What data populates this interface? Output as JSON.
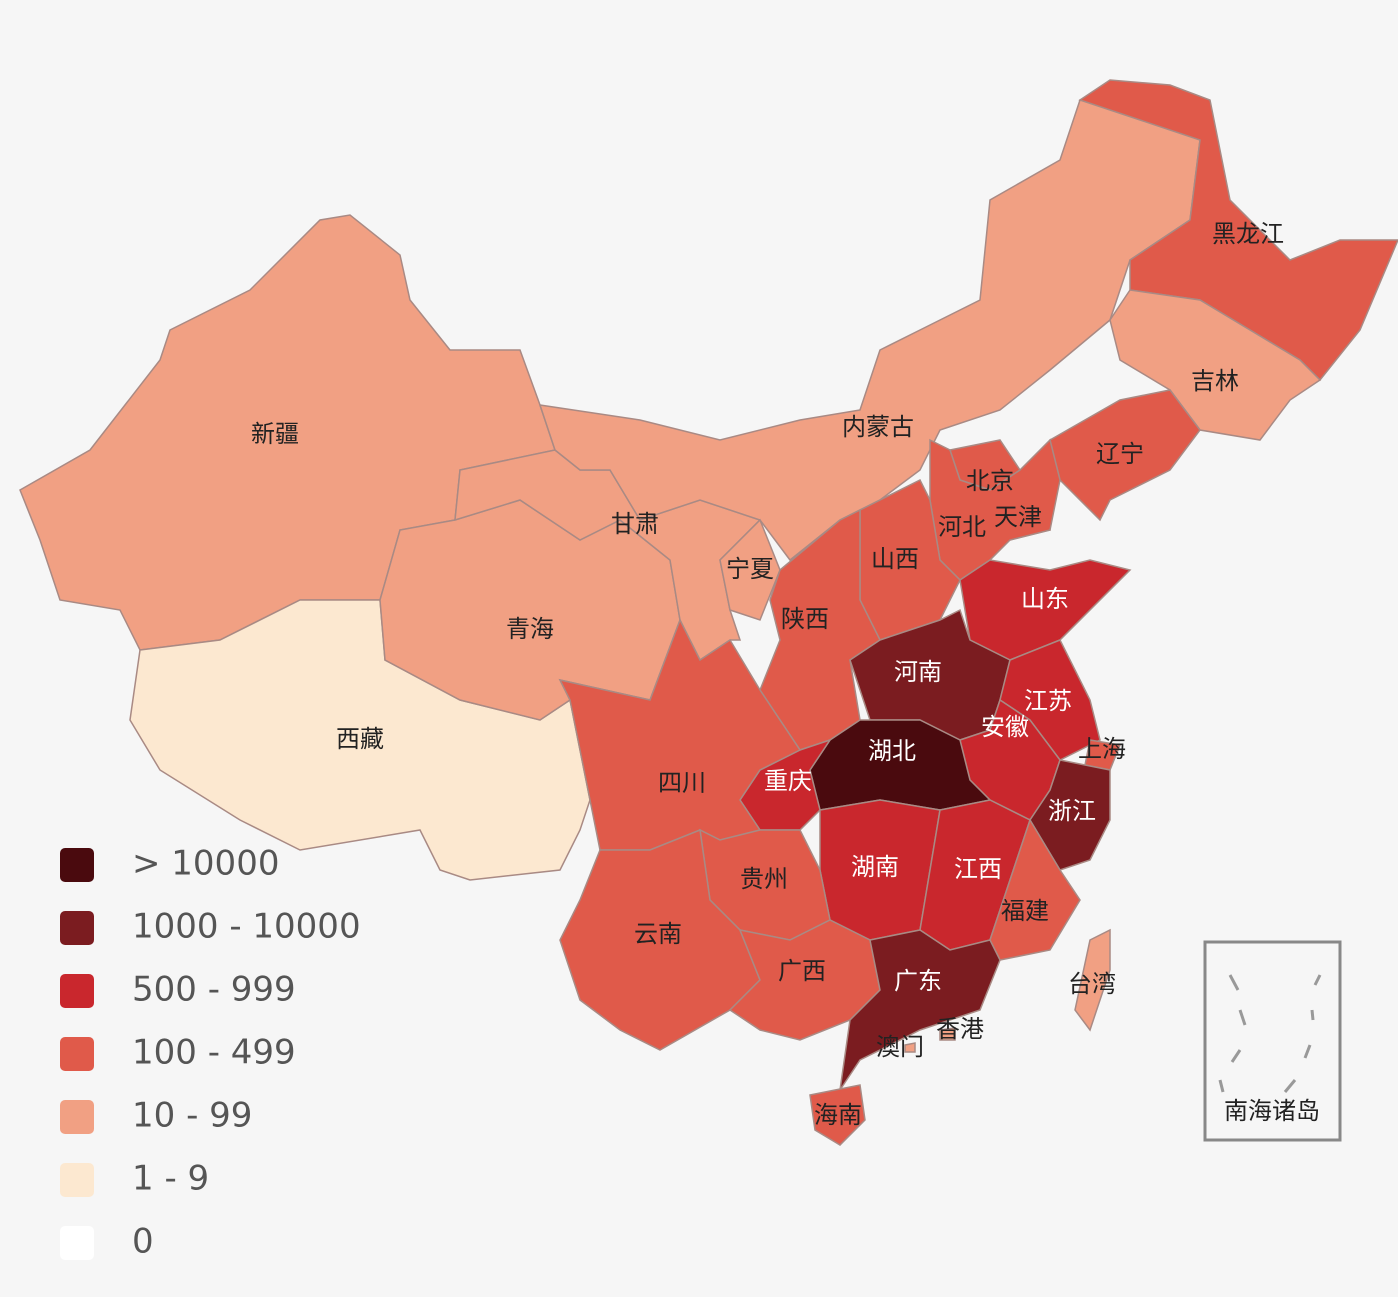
{
  "regions": [
    {
      "name": "新疆",
      "color": "#f1a083"
    },
    {
      "name": "西藏",
      "color": "#fce8d0"
    },
    {
      "name": "青海",
      "color": "#f1a083"
    },
    {
      "name": "甘肃",
      "color": "#f1a083"
    },
    {
      "name": "内蒙古",
      "color": "#f1a083"
    },
    {
      "name": "宁夏",
      "color": "#f1a083"
    },
    {
      "name": "黑龙江",
      "color": "#e05a4a"
    },
    {
      "name": "吉林",
      "color": "#f1a083"
    },
    {
      "name": "辽宁",
      "color": "#e05a4a"
    },
    {
      "name": "北京",
      "color": "#e05a4a"
    },
    {
      "name": "天津",
      "color": "#e05a4a"
    },
    {
      "name": "河北",
      "color": "#e05a4a"
    },
    {
      "name": "山西",
      "color": "#e05a4a"
    },
    {
      "name": "陕西",
      "color": "#e05a4a"
    },
    {
      "name": "山东",
      "color": "#c9272d"
    },
    {
      "name": "河南",
      "color": "#7b1c20"
    },
    {
      "name": "江苏",
      "color": "#c9272d"
    },
    {
      "name": "安徽",
      "color": "#c9272d"
    },
    {
      "name": "上海",
      "color": "#e05a4a"
    },
    {
      "name": "湖北",
      "color": "#4a0a0e"
    },
    {
      "name": "浙江",
      "color": "#7b1c20"
    },
    {
      "name": "重庆",
      "color": "#c9272d"
    },
    {
      "name": "四川",
      "color": "#e05a4a"
    },
    {
      "name": "湖南",
      "color": "#c9272d"
    },
    {
      "name": "江西",
      "color": "#c9272d"
    },
    {
      "name": "福建",
      "color": "#e05a4a"
    },
    {
      "name": "贵州",
      "color": "#e05a4a"
    },
    {
      "name": "云南",
      "color": "#e05a4a"
    },
    {
      "name": "广西",
      "color": "#e05a4a"
    },
    {
      "name": "广东",
      "color": "#7b1c20"
    },
    {
      "name": "香港",
      "color": "#f1a083"
    },
    {
      "name": "澳门",
      "color": "#f1a083"
    },
    {
      "name": "海南",
      "color": "#e05a4a"
    },
    {
      "name": "台湾",
      "color": "#f1a083"
    }
  ],
  "legend": [
    {
      "label": "> 10000",
      "color": "#4a0a0e"
    },
    {
      "label": "1000 - 10000",
      "color": "#7b1c20"
    },
    {
      "label": "500 - 999",
      "color": "#c9272d"
    },
    {
      "label": "100 - 499",
      "color": "#e05a4a"
    },
    {
      "label": "10 - 99",
      "color": "#f1a083"
    },
    {
      "label": "1 - 9",
      "color": "#fce8d0"
    },
    {
      "label": "0",
      "color": "#ffffff"
    }
  ],
  "inset_label": "南海诸岛"
}
